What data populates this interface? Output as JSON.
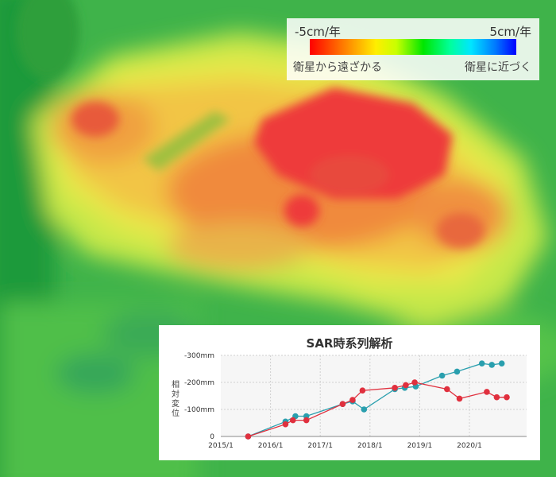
{
  "legend": {
    "min_label": "-5cm/年",
    "max_label": "5cm/年",
    "desc_left": "衛星から遠ざかる",
    "desc_right": "衛星に近づく",
    "colors": [
      "#ff0000",
      "#ff7a00",
      "#ffee00",
      "#c8ff00",
      "#00e600",
      "#00ff9c",
      "#00e6ff",
      "#0078ff",
      "#0000ff"
    ]
  },
  "chart": {
    "title": "SAR時系列解析",
    "ylabel": "相対変位"
  },
  "chart_data": {
    "type": "line",
    "title": "SAR時系列解析",
    "ylabel": "相対変位",
    "y_unit": "mm",
    "y_ticks": [
      0,
      -100,
      -200,
      -300
    ],
    "y_tick_labels": [
      "0",
      "-100mm",
      "-200mm",
      "-300mm"
    ],
    "ylim": [
      0,
      -300
    ],
    "x_ticks": [
      "2015/1",
      "2016/1",
      "2017/1",
      "2018/1",
      "2019/1",
      "2020/1"
    ],
    "xlim": [
      2015.0,
      2021.15
    ],
    "grid": true,
    "series": [
      {
        "color": "#2a9fae",
        "x": [
          2015.55,
          2016.3,
          2016.5,
          2016.72,
          2017.45,
          2017.65,
          2017.88,
          2018.5,
          2018.7,
          2018.92,
          2019.45,
          2019.75,
          2020.25,
          2020.45,
          2020.65
        ],
        "y": [
          0,
          -55,
          -75,
          -75,
          -120,
          -130,
          -100,
          -175,
          -180,
          -185,
          -225,
          -240,
          -270,
          -265,
          -270
        ]
      },
      {
        "color": "#e0303e",
        "x": [
          2015.55,
          2016.3,
          2016.45,
          2016.72,
          2017.45,
          2017.65,
          2017.85,
          2018.5,
          2018.72,
          2018.9,
          2019.55,
          2019.8,
          2020.35,
          2020.55,
          2020.75
        ],
        "y": [
          0,
          -45,
          -60,
          -60,
          -120,
          -135,
          -170,
          -180,
          -190,
          -200,
          -175,
          -140,
          -165,
          -145,
          -145
        ]
      }
    ]
  }
}
